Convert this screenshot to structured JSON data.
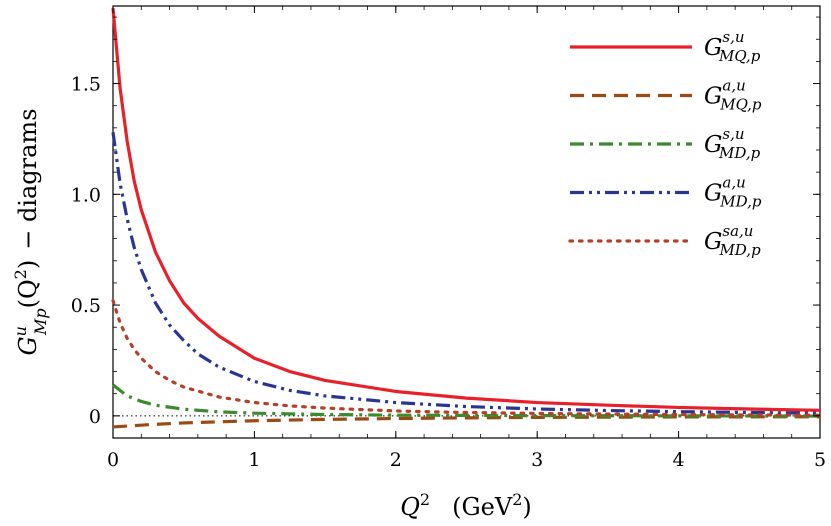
{
  "chart_data": {
    "type": "line",
    "xlabel": "Q² (GeV²)",
    "xlabel_parts": {
      "var": "Q",
      "sup": "2",
      "unit_open": "(GeV",
      "unit_sup": "2",
      "unit_close": ")"
    },
    "ylabel": "G^u_Mp(Q²) − diagrams",
    "ylabel_parts": {
      "base": "G",
      "sup": "u",
      "sub": "Mp",
      "arg_open": "(Q",
      "arg_sup": "2",
      "arg_close": ")",
      "suffix": "− diagrams"
    },
    "xlim": [
      0,
      5
    ],
    "ylim": [
      -0.1,
      1.85
    ],
    "x_ticks": [
      0,
      1,
      2,
      3,
      4,
      5
    ],
    "y_ticks": [
      0,
      0.5,
      1.0,
      1.5
    ],
    "x_tick_labels": [
      "0",
      "1",
      "2",
      "3",
      "4",
      "5"
    ],
    "y_tick_labels": [
      "0",
      "0.5",
      "1.0",
      "1.5"
    ],
    "zero_line": true,
    "legend_position": "top-right",
    "series": [
      {
        "name": "G^{s,u}_{MQ,p}",
        "base": "G",
        "sup": "s,u",
        "sub": "MQ,p",
        "color": "#e8202a",
        "dash": "solid",
        "x": [
          0,
          0.05,
          0.1,
          0.15,
          0.2,
          0.3,
          0.4,
          0.5,
          0.6,
          0.75,
          1.0,
          1.25,
          1.5,
          2.0,
          2.5,
          3.0,
          3.5,
          4.0,
          4.5,
          5.0
        ],
        "y": [
          1.84,
          1.48,
          1.24,
          1.06,
          0.93,
          0.74,
          0.61,
          0.51,
          0.44,
          0.36,
          0.26,
          0.2,
          0.16,
          0.11,
          0.08,
          0.06,
          0.048,
          0.038,
          0.031,
          0.025
        ]
      },
      {
        "name": "G^{a,u}_{MQ,p}",
        "base": "G",
        "sup": "a,u",
        "sub": "MQ,p",
        "color": "#9b4a14",
        "dash": "dashed",
        "x": [
          0,
          0.25,
          0.5,
          1.0,
          1.5,
          2.0,
          2.5,
          3.0,
          4.0,
          5.0
        ],
        "y": [
          -0.05,
          -0.04,
          -0.032,
          -0.022,
          -0.016,
          -0.012,
          -0.009,
          -0.007,
          -0.005,
          -0.004
        ]
      },
      {
        "name": "G^{s,u}_{MD,p}",
        "base": "G",
        "sup": "s,u",
        "sub": "MD,p",
        "color": "#3c8a2e",
        "dash": "dashdot",
        "x": [
          0,
          0.1,
          0.2,
          0.3,
          0.5,
          0.75,
          1.0,
          1.5,
          2.0,
          2.5,
          3.0,
          4.0,
          5.0
        ],
        "y": [
          0.14,
          0.09,
          0.065,
          0.048,
          0.03,
          0.018,
          0.012,
          0.006,
          0.003,
          0.002,
          0.001,
          0.0,
          -0.001
        ]
      },
      {
        "name": "G^{a,u}_{MD,p}",
        "base": "G",
        "sup": "a,u",
        "sub": "MD,p",
        "color": "#283593",
        "dash": "dashdotdot",
        "x": [
          0,
          0.05,
          0.1,
          0.15,
          0.2,
          0.3,
          0.4,
          0.5,
          0.6,
          0.75,
          1.0,
          1.25,
          1.5,
          2.0,
          2.5,
          3.0,
          3.5,
          4.0,
          4.5,
          5.0
        ],
        "y": [
          1.28,
          1.05,
          0.89,
          0.76,
          0.66,
          0.51,
          0.41,
          0.34,
          0.28,
          0.22,
          0.155,
          0.115,
          0.09,
          0.06,
          0.042,
          0.031,
          0.024,
          0.019,
          0.015,
          0.012
        ]
      },
      {
        "name": "G^{sa,u}_{MD,p}",
        "base": "G",
        "sup": "sa,u",
        "sub": "MD,p",
        "color": "#b5402a",
        "dash": "dotted",
        "x": [
          0,
          0.05,
          0.1,
          0.15,
          0.2,
          0.3,
          0.4,
          0.5,
          0.75,
          1.0,
          1.25,
          1.5,
          2.0,
          2.5,
          3.0,
          3.5,
          4.0,
          4.5,
          5.0
        ],
        "y": [
          0.52,
          0.42,
          0.35,
          0.3,
          0.26,
          0.2,
          0.16,
          0.13,
          0.085,
          0.06,
          0.045,
          0.035,
          0.022,
          0.015,
          0.011,
          0.008,
          0.006,
          0.004,
          0.003
        ]
      }
    ]
  }
}
